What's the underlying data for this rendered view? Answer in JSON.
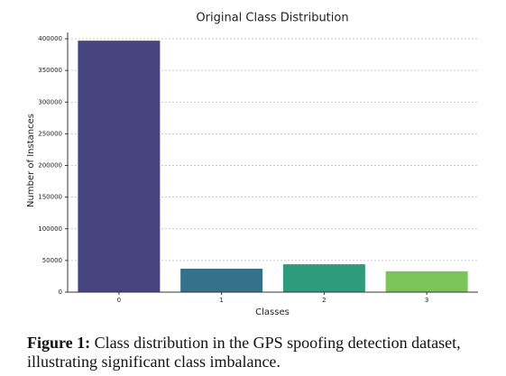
{
  "chart_data": {
    "type": "bar",
    "title": "Original Class Distribution",
    "x_label": "Classes",
    "y_label": "Number of Instances",
    "categories": [
      "0",
      "1",
      "2",
      "3"
    ],
    "values": [
      397000,
      37000,
      44000,
      33000
    ],
    "colors": [
      "#46457f",
      "#35718a",
      "#2f9b7d",
      "#7cc35c"
    ],
    "ylim": [
      0,
      410000
    ],
    "yticks": [
      0,
      50000,
      100000,
      150000,
      200000,
      250000,
      300000,
      350000,
      400000
    ],
    "grid": true
  },
  "figure_caption": {
    "label": "Figure 1:",
    "text": "Class distribution in the GPS spoofing detection dataset, illustrating significant class imbalance."
  }
}
